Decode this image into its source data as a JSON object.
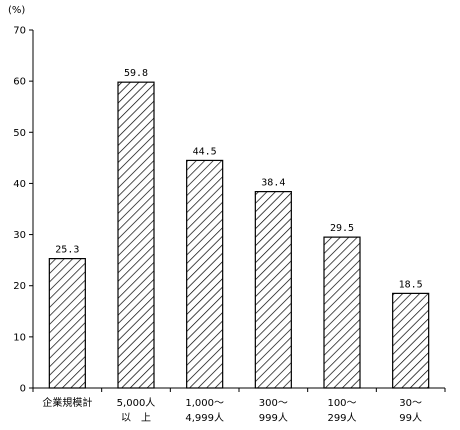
{
  "chart_data": {
    "type": "bar",
    "unit_label": "(%)",
    "categories": [
      "企業規模計",
      "5,000人\n以　上",
      "1,000～\n4,999人",
      "300～\n999人",
      "100～\n299人",
      "30～\n99人"
    ],
    "values": [
      25.3,
      59.8,
      44.5,
      38.4,
      29.5,
      18.5
    ],
    "value_labels": [
      "25.3",
      "59.8",
      "44.5",
      "38.4",
      "29.5",
      "18.5"
    ],
    "y_ticks": [
      "0",
      "10",
      "20",
      "30",
      "40",
      "50",
      "60",
      "70"
    ],
    "ylim": [
      0,
      70
    ],
    "grid": false,
    "bar_fill": "diagonal-hatch",
    "bar_color": "#000000"
  }
}
